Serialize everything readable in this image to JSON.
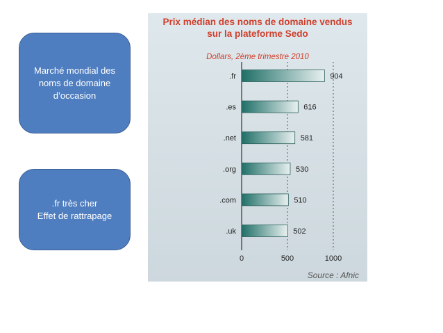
{
  "callouts": [
    {
      "lines": [
        "Marché mondial des",
        "noms de domaine",
        "d’occasion"
      ]
    },
    {
      "lines": [
        ".fr très cher",
        "Effet de rattrapage"
      ]
    }
  ],
  "chart_data": {
    "type": "bar",
    "orientation": "horizontal",
    "title": "Prix médian des noms de domaine vendus sur la plateforme Sedo",
    "title_lines": [
      "Prix médian des noms de domaine vendus",
      "sur la plateforme Sedo"
    ],
    "subtitle": "Dollars, 2ème trimestre 2010",
    "source": "Source : Afnic",
    "categories": [
      ".fr",
      ".es",
      ".net",
      ".org",
      ".com",
      ".uk"
    ],
    "values": [
      904,
      616,
      581,
      530,
      510,
      502
    ],
    "xlim": [
      0,
      1000
    ],
    "xticks": [
      0,
      500,
      1000
    ],
    "colors": {
      "bar_start": "#1f6f67",
      "bar_end": "#e8f0f0",
      "title": "#cf3f2c",
      "background": "#d9e3e8"
    }
  }
}
